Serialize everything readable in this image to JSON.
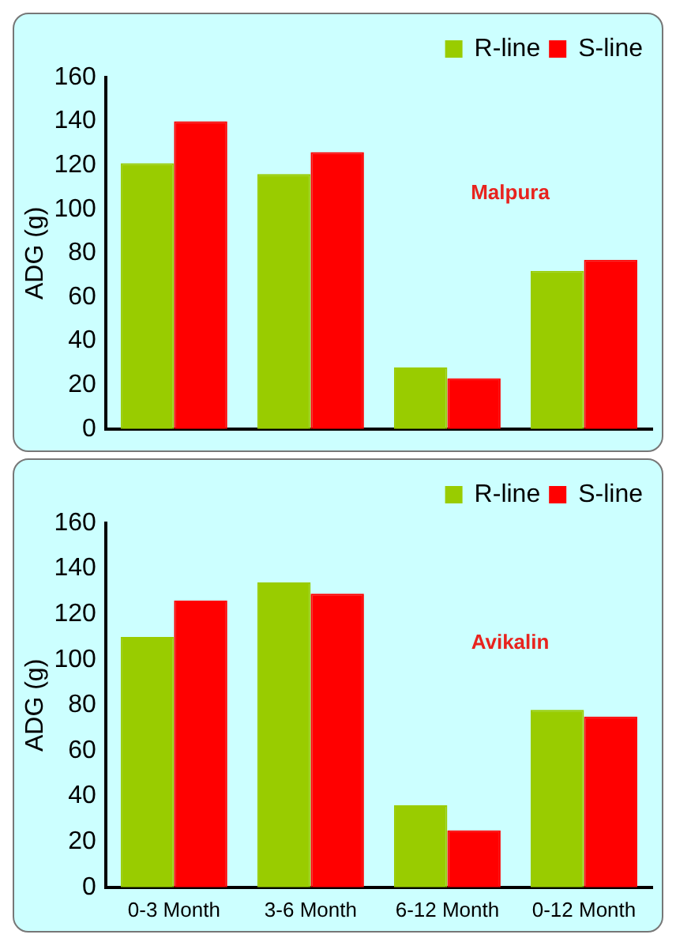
{
  "chart_data": [
    {
      "type": "bar",
      "categories": [
        null,
        null,
        null,
        null
      ],
      "ylabel": "ADG (g)",
      "ylim": [
        0,
        160
      ],
      "yticks": [
        0,
        20,
        40,
        60,
        80,
        100,
        120,
        140,
        160
      ],
      "tick_labels": "y",
      "legend": "top right",
      "annotations": [
        "Malpura"
      ],
      "series": [
        {
          "name": "R-line",
          "color": "#99cc00",
          "values": [
            121,
            116,
            28,
            72
          ]
        },
        {
          "name": "S-line",
          "color": "#ff0000",
          "values": [
            140,
            126,
            23,
            77
          ]
        }
      ]
    },
    {
      "type": "bar",
      "categories": [
        "0-3 Month",
        "3-6 Month",
        "6-12 Month",
        "0-12 Month"
      ],
      "ylabel": "ADG (g)",
      "ylim": [
        0,
        160
      ],
      "yticks": [
        0,
        20,
        40,
        60,
        80,
        100,
        120,
        140,
        160
      ],
      "legend": "top right",
      "annotations": [
        "Avikalin"
      ],
      "series": [
        {
          "name": "R-line",
          "color": "#99cc00",
          "values": [
            110,
            134,
            36,
            78
          ]
        },
        {
          "name": "S-line",
          "color": "#ff0000",
          "values": [
            126,
            129,
            25,
            75
          ]
        }
      ]
    }
  ]
}
